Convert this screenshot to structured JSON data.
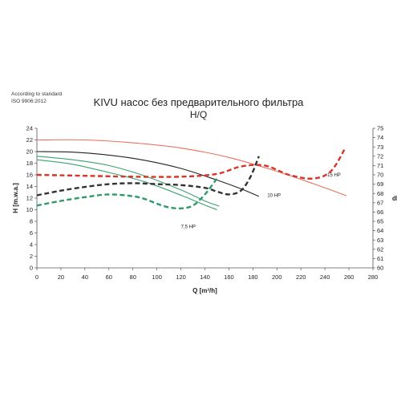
{
  "standard": {
    "line1": "According to standard",
    "line2": "ISO 9906:2012"
  },
  "chart_data": {
    "type": "line",
    "title": "KIVU насос без предварительного фильтра",
    "subtitle": "H/Q",
    "xlabel": "Q [m³/h]",
    "ylabel": "H [m.w.a.]",
    "y2label": "dB",
    "xlim": [
      0,
      280
    ],
    "ylim": [
      0,
      24
    ],
    "y2lim": [
      60,
      75
    ],
    "x_ticks": [
      0,
      20,
      40,
      60,
      80,
      100,
      120,
      140,
      160,
      180,
      200,
      220,
      240,
      260,
      280
    ],
    "y_ticks": [
      0,
      2,
      4,
      6,
      8,
      10,
      12,
      14,
      16,
      18,
      20,
      22,
      24
    ],
    "y2_ticks": [
      60,
      61,
      62,
      63,
      64,
      65,
      66,
      67,
      68,
      69,
      70,
      71,
      72,
      73,
      74,
      75
    ],
    "grid": false,
    "series": [
      {
        "name": "7,5 HP",
        "kind": "head",
        "axis": "left",
        "color": "#3aa36e",
        "dash": false,
        "label_at": [
          120,
          6.8
        ],
        "points": [
          [
            0,
            19.2
          ],
          [
            30,
            18.6
          ],
          [
            60,
            17.6
          ],
          [
            90,
            15.8
          ],
          [
            120,
            13.4
          ],
          [
            140,
            11.5
          ],
          [
            152,
            10.6
          ]
        ]
      },
      {
        "name": "",
        "kind": "head",
        "axis": "left",
        "color": "#3aa36e",
        "dash": false,
        "points": [
          [
            0,
            18.6
          ],
          [
            30,
            17.8
          ],
          [
            60,
            16.4
          ],
          [
            90,
            14.8
          ],
          [
            120,
            12.5
          ],
          [
            140,
            10.8
          ],
          [
            150,
            10.0
          ]
        ]
      },
      {
        "name": "10 HP",
        "kind": "head",
        "axis": "left",
        "color": "#222222",
        "dash": false,
        "label_at": [
          192,
          12.2
        ],
        "points": [
          [
            0,
            20.0
          ],
          [
            30,
            19.9
          ],
          [
            60,
            19.4
          ],
          [
            90,
            18.5
          ],
          [
            120,
            17.1
          ],
          [
            150,
            15.1
          ],
          [
            170,
            13.6
          ],
          [
            185,
            12.3
          ]
        ]
      },
      {
        "name": "15 HP",
        "kind": "head",
        "axis": "left",
        "color": "#e8705a",
        "dash": false,
        "label_at": [
          242,
          15.7
        ],
        "points": [
          [
            0,
            22.0
          ],
          [
            40,
            22.0
          ],
          [
            80,
            21.5
          ],
          [
            120,
            20.6
          ],
          [
            160,
            19.0
          ],
          [
            200,
            16.6
          ],
          [
            230,
            14.5
          ],
          [
            258,
            12.4
          ]
        ]
      },
      {
        "name": "",
        "kind": "noise",
        "axis": "right",
        "color": "#2e9a6a",
        "dash": true,
        "points": [
          [
            0,
            66.7
          ],
          [
            20,
            67.2
          ],
          [
            40,
            67.6
          ],
          [
            60,
            67.9
          ],
          [
            80,
            67.7
          ],
          [
            90,
            67.4
          ],
          [
            100,
            66.9
          ],
          [
            110,
            66.5
          ],
          [
            120,
            66.4
          ],
          [
            130,
            66.7
          ],
          [
            140,
            67.9
          ],
          [
            150,
            69.6
          ]
        ]
      },
      {
        "name": "",
        "kind": "noise",
        "axis": "right",
        "color": "#333333",
        "dash": true,
        "points": [
          [
            0,
            67.8
          ],
          [
            20,
            68.3
          ],
          [
            40,
            68.7
          ],
          [
            60,
            69.0
          ],
          [
            80,
            69.1
          ],
          [
            100,
            69.0
          ],
          [
            120,
            68.9
          ],
          [
            140,
            68.6
          ],
          [
            150,
            68.2
          ],
          [
            160,
            67.9
          ],
          [
            170,
            68.3
          ],
          [
            178,
            69.8
          ],
          [
            185,
            72.0
          ]
        ]
      },
      {
        "name": "",
        "kind": "noise",
        "axis": "right",
        "color": "#d6352a",
        "dash": true,
        "points": [
          [
            0,
            70.0
          ],
          [
            40,
            69.9
          ],
          [
            80,
            69.8
          ],
          [
            120,
            69.8
          ],
          [
            150,
            70.1
          ],
          [
            170,
            70.9
          ],
          [
            190,
            71.0
          ],
          [
            210,
            70.0
          ],
          [
            230,
            69.6
          ],
          [
            245,
            70.4
          ],
          [
            257,
            72.9
          ]
        ]
      }
    ]
  }
}
